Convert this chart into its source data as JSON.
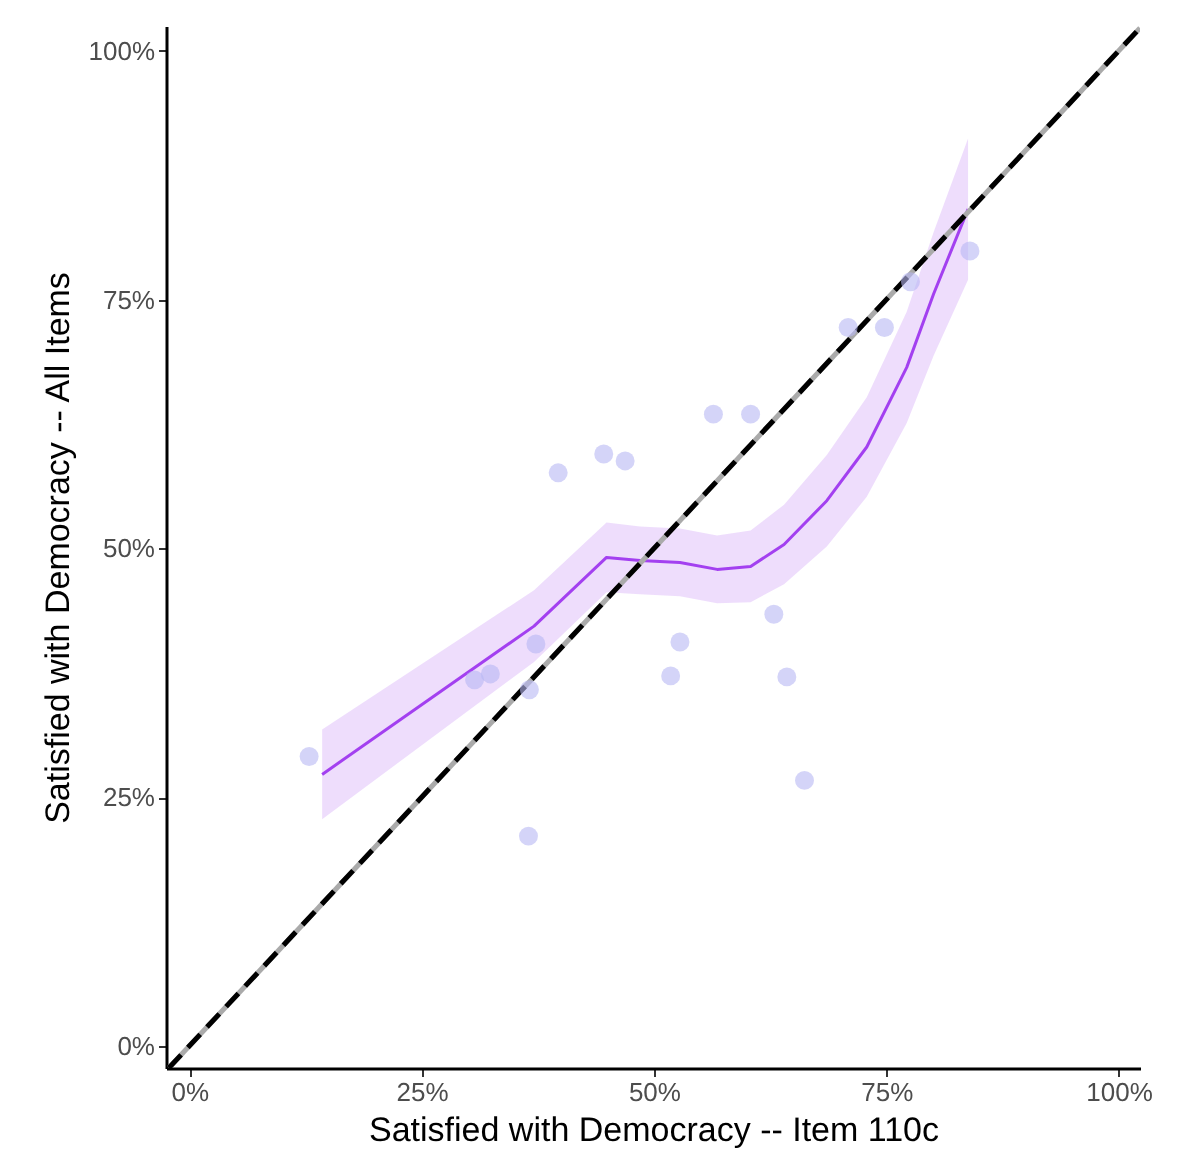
{
  "chart_data": {
    "type": "scatter",
    "xlabel": "Satisfied with Democracy -- Item 110c",
    "ylabel": "Satisfied with Democracy -- All Items",
    "xlim": [
      -2.5,
      102.3
    ],
    "ylim": [
      -2.2,
      102.5
    ],
    "xticks": [
      {
        "value": 0,
        "label": "0%"
      },
      {
        "value": 25,
        "label": "25%"
      },
      {
        "value": 50,
        "label": "50%"
      },
      {
        "value": 75,
        "label": "75%"
      },
      {
        "value": 100,
        "label": "100%"
      }
    ],
    "yticks": [
      {
        "value": 0,
        "label": "0%"
      },
      {
        "value": 25,
        "label": "25%"
      },
      {
        "value": 50,
        "label": "50%"
      },
      {
        "value": 75,
        "label": "75%"
      },
      {
        "value": 100,
        "label": "100%"
      }
    ],
    "grid": false,
    "series": [
      {
        "color": "#b8b8f4",
        "marker": "circle",
        "x": [
          12.9,
          30.7,
          32.4,
          37.3,
          36.6,
          36.5,
          39.7,
          44.6,
          46.9,
          51.8,
          52.8,
          56.4,
          60.4,
          62.9,
          64.3,
          66.2,
          70.9,
          74.8,
          77.6,
          84.0
        ],
        "values": [
          29.1,
          36.8,
          37.4,
          40.4,
          35.8,
          21.1,
          57.6,
          59.5,
          58.8,
          37.2,
          40.6,
          63.5,
          63.5,
          43.4,
          37.1,
          26.7,
          72.2,
          72.2,
          76.8,
          79.9
        ]
      },
      {
        "type": "line",
        "color": "#a340f0",
        "line_style": "solid",
        "marker": "none",
        "x": [
          14.3,
          37.1,
          44.9,
          48.5,
          52.8,
          56.8,
          60.4,
          64.0,
          68.6,
          72.9,
          77.2,
          80.1,
          83.8
        ],
        "values": [
          27.3,
          42.2,
          49.1,
          48.8,
          48.6,
          47.9,
          48.2,
          50.4,
          54.8,
          60.2,
          68.2,
          75.6,
          84.1
        ],
        "lower": [
          22.8,
          38.6,
          45.6,
          45.4,
          45.2,
          44.5,
          44.6,
          46.4,
          50.2,
          55.2,
          62.6,
          69.4,
          77.0
        ],
        "upper": [
          31.8,
          45.8,
          52.6,
          52.2,
          52.0,
          51.3,
          51.8,
          54.4,
          59.4,
          65.2,
          73.8,
          81.8,
          91.2
        ]
      },
      {
        "type": "line",
        "color": "#000000",
        "line_style": "dashed",
        "marker": "none",
        "x": [
          -2.2,
          102.3
        ],
        "values": [
          -2.2,
          102.3
        ]
      }
    ]
  }
}
